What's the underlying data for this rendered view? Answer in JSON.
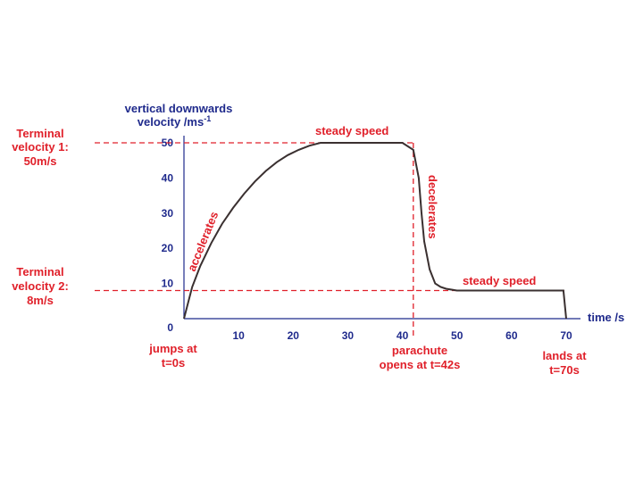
{
  "chart_data": {
    "type": "line",
    "ylabel": [
      "vertical downwards",
      "velocity /ms"
    ],
    "ylabel_sup": "-1",
    "xlabel": "time /s",
    "xlim": [
      0,
      70
    ],
    "ylim": [
      0,
      50
    ],
    "x_ticks": [
      "10",
      "20",
      "30",
      "40",
      "50",
      "60",
      "70"
    ],
    "y_ticks": [
      "0",
      "10",
      "20",
      "30",
      "40",
      "50"
    ],
    "grid": false,
    "series": [
      {
        "color": "#3a3030",
        "x": [
          0,
          1.5,
          3,
          5,
          7,
          9,
          11,
          13,
          15,
          17,
          19,
          21,
          23,
          25,
          30,
          35,
          40,
          42,
          43,
          43.5,
          44,
          45,
          46,
          47,
          48,
          50,
          55,
          60,
          65,
          69.5,
          70
        ],
        "y": [
          0,
          9,
          15,
          21.5,
          27,
          31.5,
          35.5,
          39,
          42,
          44.5,
          46.5,
          48,
          49.2,
          50,
          50,
          50,
          50,
          48,
          40,
          30,
          22,
          14,
          10,
          9,
          8.5,
          8,
          8,
          8,
          8,
          8,
          0
        ]
      }
    ],
    "reference_lines": [
      {
        "axis": "y",
        "value": 50,
        "color": "#e0202a"
      },
      {
        "axis": "y",
        "value": 8,
        "color": "#e0202a"
      },
      {
        "axis": "x",
        "value": 42,
        "color": "#e0202a"
      }
    ],
    "annotations": {
      "terminal1": [
        "Terminal",
        "velocity 1:",
        "50m/s"
      ],
      "terminal2": [
        "Terminal",
        "velocity 2:",
        "8m/s"
      ],
      "steady1": "steady speed",
      "steady2": "steady speed",
      "accelerates": "accelerates",
      "decelerates": "decelerates",
      "jumps": [
        "jumps at",
        "t=0s"
      ],
      "parachute": [
        "parachute",
        "opens at t=42s"
      ],
      "lands": [
        "lands at",
        "t=70s"
      ]
    }
  }
}
